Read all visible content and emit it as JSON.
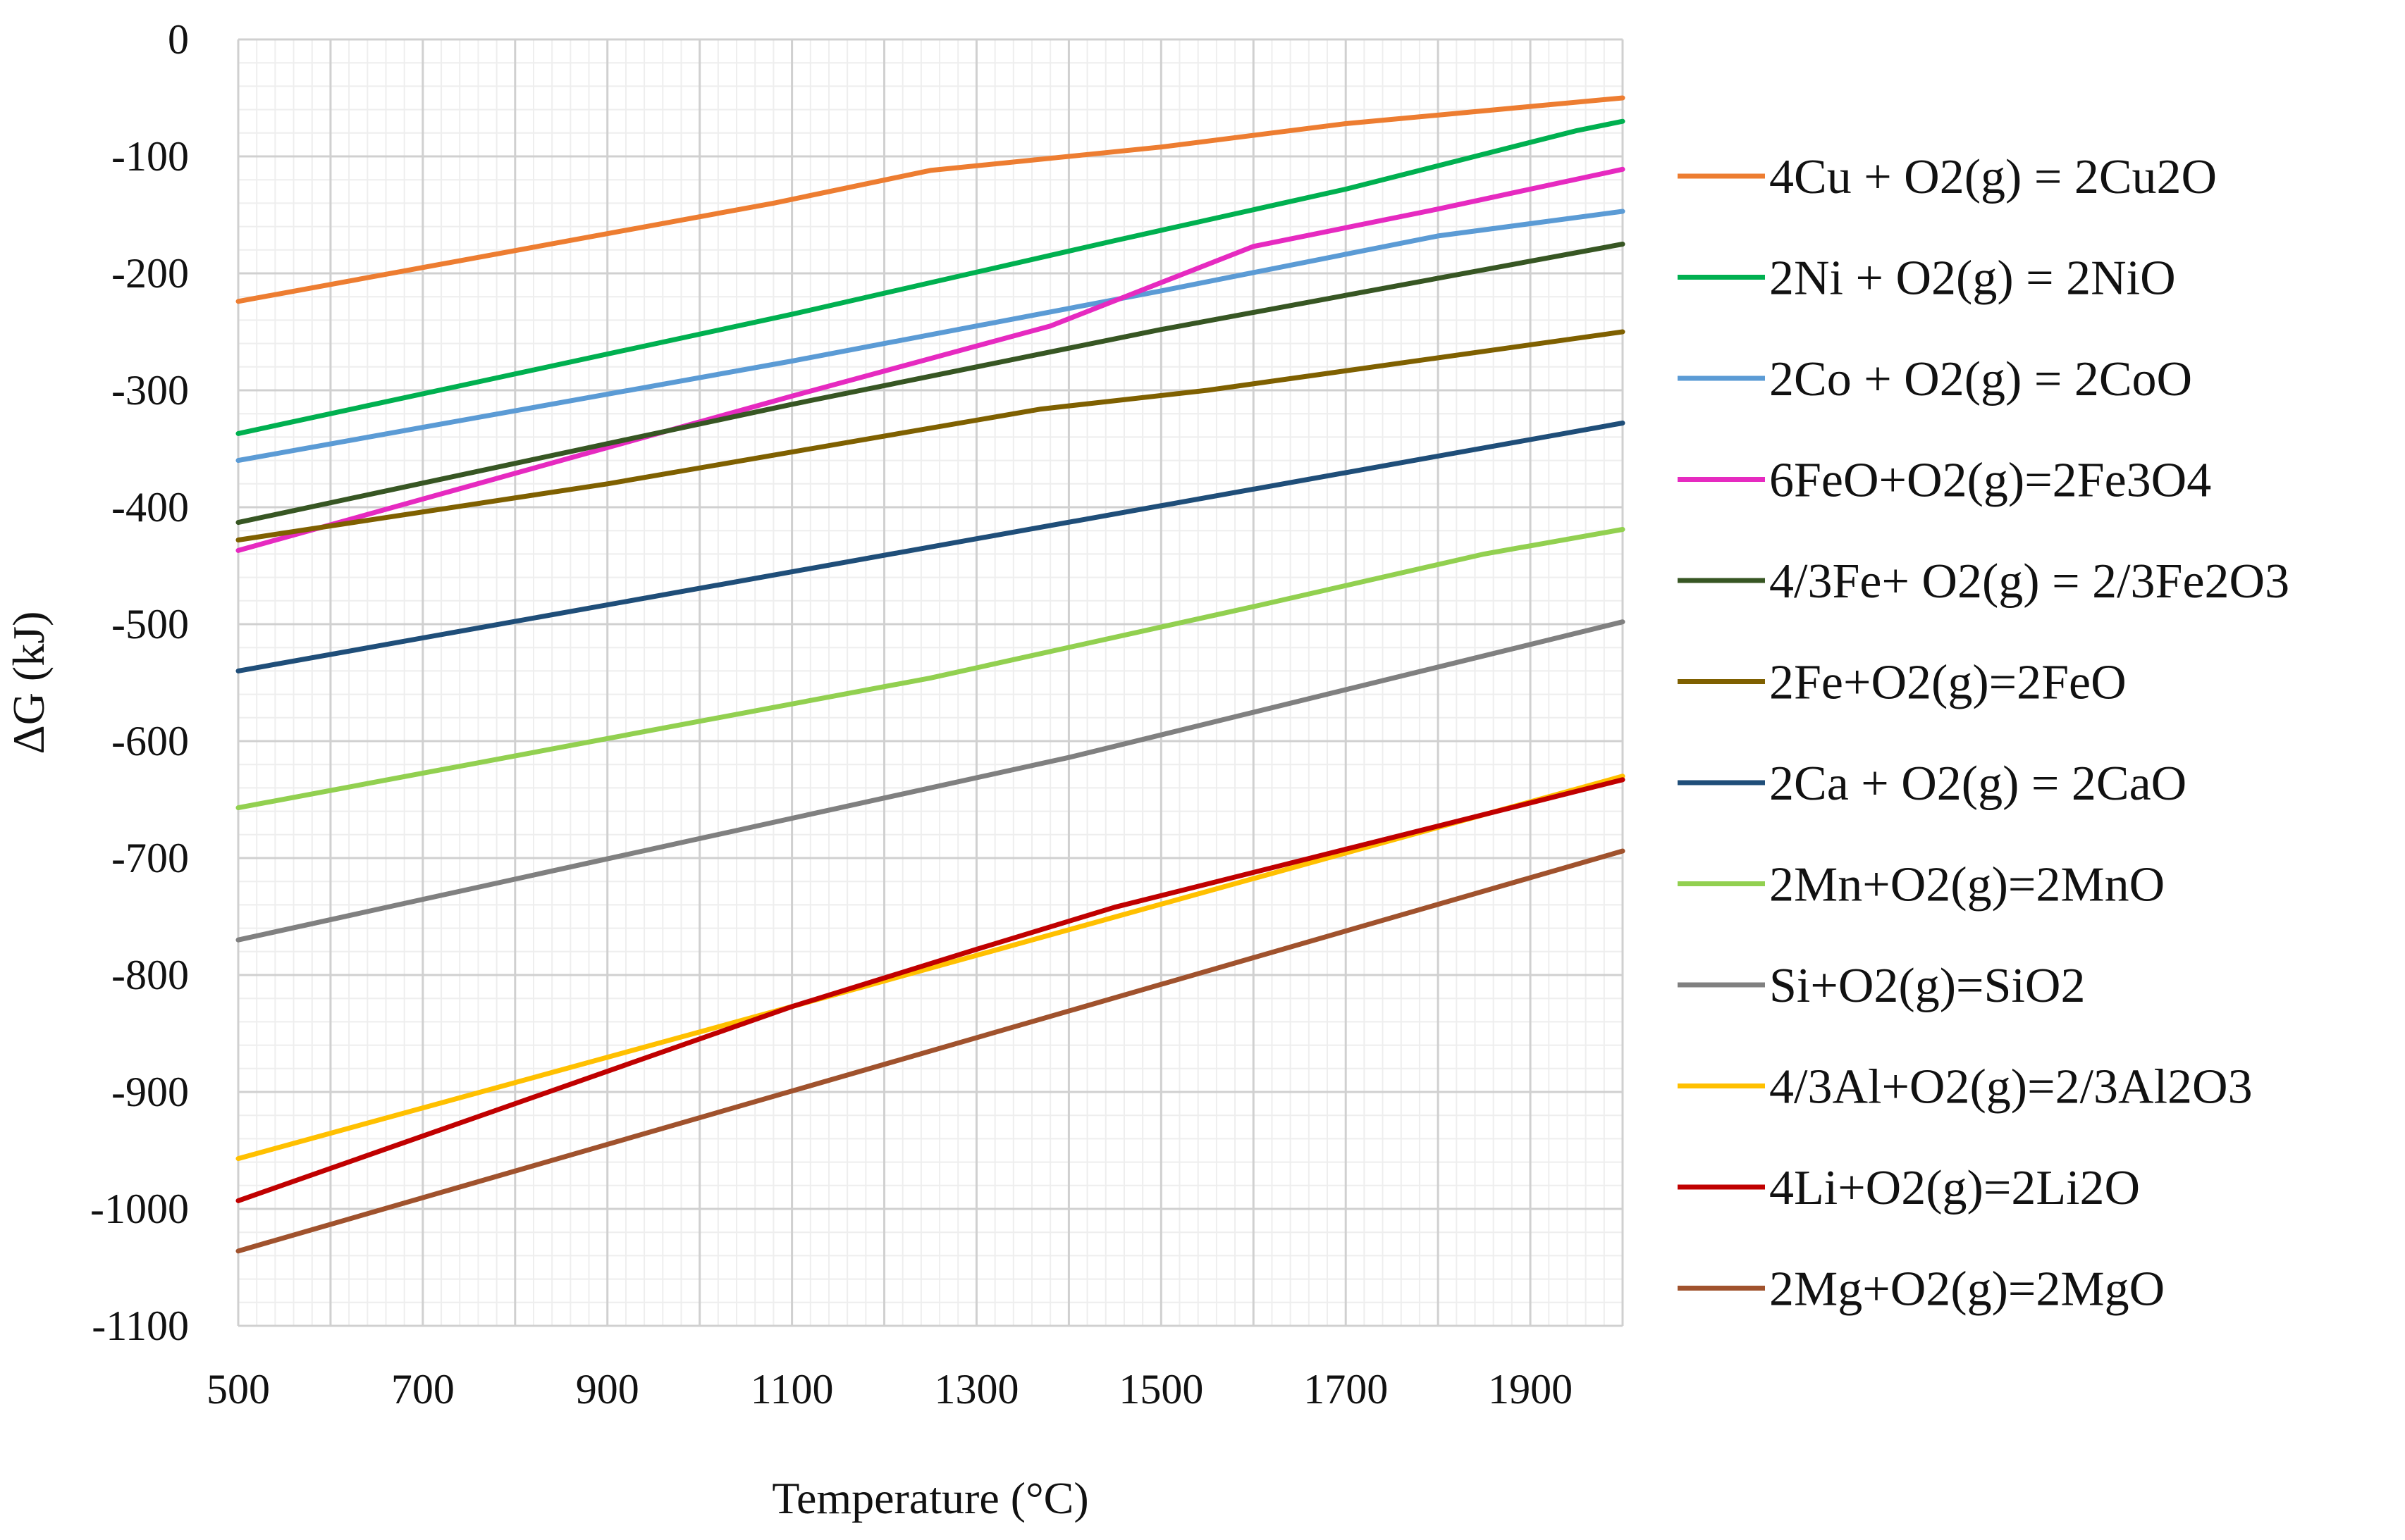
{
  "chart_data": {
    "type": "line",
    "title": "",
    "xlabel": "Temperature (°C)",
    "ylabel": "ΔG (kJ)",
    "xlim": [
      500,
      2000
    ],
    "ylim": [
      -1100,
      0
    ],
    "x_ticks": [
      500,
      700,
      900,
      1100,
      1300,
      1500,
      1700,
      1900
    ],
    "x_tick_labels": [
      "500",
      "700",
      "900",
      "1100",
      "1300",
      "1500",
      "1700",
      "1900"
    ],
    "y_ticks": [
      0,
      -100,
      -200,
      -300,
      -400,
      -500,
      -600,
      -700,
      -800,
      -900,
      -1000,
      -1100
    ],
    "y_tick_labels": [
      "0",
      "-100",
      "-200",
      "-300",
      "-400",
      "-500",
      "-600",
      "-700",
      "-800",
      "-900",
      "-1000",
      "-1100"
    ],
    "grid": true,
    "minor_grid": true,
    "legend_position": "right",
    "series": [
      {
        "name": "4Cu + O2(g) = 2Cu2O",
        "color": "#ED7D31",
        "points": [
          [
            500,
            -224
          ],
          [
            1080,
            -140
          ],
          [
            1250,
            -112
          ],
          [
            1500,
            -92
          ],
          [
            1700,
            -72
          ],
          [
            2000,
            -50
          ]
        ]
      },
      {
        "name": "2Ni + O2(g) = 2NiO",
        "color": "#00B050",
        "points": [
          [
            500,
            -337
          ],
          [
            1100,
            -235
          ],
          [
            1450,
            -172
          ],
          [
            1700,
            -128
          ],
          [
            1950,
            -78
          ],
          [
            2000,
            -70
          ]
        ]
      },
      {
        "name": "2Co + O2(g) = 2CoO",
        "color": "#5B9BD5",
        "points": [
          [
            500,
            -360
          ],
          [
            1100,
            -275
          ],
          [
            1500,
            -215
          ],
          [
            1800,
            -168
          ],
          [
            2000,
            -147
          ]
        ]
      },
      {
        "name": "6FeO+O2(g)=2Fe3O4",
        "color": "#E62AC0",
        "points": [
          [
            500,
            -437
          ],
          [
            1100,
            -305
          ],
          [
            1380,
            -245
          ],
          [
            1600,
            -177
          ],
          [
            1800,
            -145
          ],
          [
            2000,
            -111
          ]
        ]
      },
      {
        "name": "4/3Fe+ O2(g) = 2/3Fe2O3",
        "color": "#375623",
        "points": [
          [
            500,
            -413
          ],
          [
            1100,
            -312
          ],
          [
            1500,
            -248
          ],
          [
            2000,
            -175
          ]
        ]
      },
      {
        "name": "2Fe+O2(g)=2FeO",
        "color": "#7F6000",
        "points": [
          [
            500,
            -428
          ],
          [
            900,
            -380
          ],
          [
            1370,
            -316
          ],
          [
            1550,
            -300
          ],
          [
            2000,
            -250
          ]
        ]
      },
      {
        "name": "2Ca + O2(g) = 2CaO",
        "color": "#1F4E79",
        "points": [
          [
            500,
            -540
          ],
          [
            2000,
            -328
          ]
        ]
      },
      {
        "name": "2Mn+O2(g)=2MnO",
        "color": "#92D050",
        "points": [
          [
            500,
            -657
          ],
          [
            1250,
            -546
          ],
          [
            1600,
            -485
          ],
          [
            1850,
            -440
          ],
          [
            2000,
            -419
          ]
        ]
      },
      {
        "name": "Si+O2(g)=SiO2",
        "color": "#808080",
        "points": [
          [
            500,
            -770
          ],
          [
            1400,
            -614
          ],
          [
            2000,
            -498
          ]
        ]
      },
      {
        "name": "4/3Al+O2(g)=2/3Al2O3",
        "color": "#FFC000",
        "points": [
          [
            500,
            -957
          ],
          [
            1100,
            -827
          ],
          [
            2000,
            -630
          ]
        ]
      },
      {
        "name": "4Li+O2(g)=2Li2O",
        "color": "#C00000",
        "points": [
          [
            500,
            -993
          ],
          [
            1100,
            -827
          ],
          [
            1300,
            -778
          ],
          [
            1450,
            -742
          ],
          [
            2000,
            -633
          ]
        ]
      },
      {
        "name": "2Mg+O2(g)=2MgO",
        "color": "#A0522D",
        "points": [
          [
            500,
            -1036
          ],
          [
            2000,
            -694
          ]
        ]
      }
    ]
  }
}
